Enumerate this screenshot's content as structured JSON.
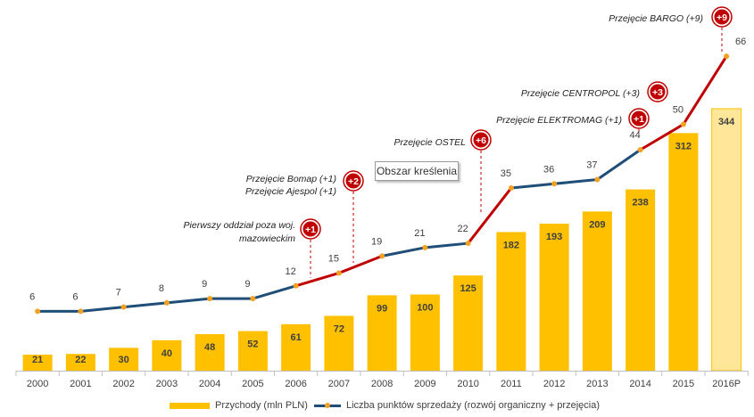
{
  "chart_data": {
    "type": "bar+line",
    "categories": [
      "2000",
      "2001",
      "2002",
      "2003",
      "2004",
      "2005",
      "2006",
      "2007",
      "2008",
      "2009",
      "2010",
      "2011",
      "2012",
      "2013",
      "2014",
      "2015",
      "2016P"
    ],
    "series": [
      {
        "name": "Przychody (mln PLN)",
        "type": "bar",
        "values": [
          21,
          22,
          30,
          40,
          48,
          52,
          61,
          72,
          99,
          100,
          125,
          182,
          193,
          209,
          238,
          312,
          344
        ],
        "projected_index": 16
      },
      {
        "name": "Liczba punktów sprzedaży (rozwój organiczny + przejęcia)",
        "type": "line",
        "values": [
          6,
          6,
          7,
          8,
          9,
          9,
          12,
          15,
          19,
          21,
          22,
          35,
          36,
          37,
          44,
          50,
          66
        ],
        "acquisition_segments": [
          [
            6,
            7
          ],
          [
            7,
            8
          ],
          [
            10,
            11
          ],
          [
            14,
            15
          ],
          [
            15,
            16
          ]
        ]
      }
    ],
    "annotations": [
      {
        "badge": "+1",
        "label": "Pierwszy oddział poza woj. mazowieckim",
        "at": 6.5
      },
      {
        "badge": "+2",
        "label": "Przejęcie Bomap (+1) Przejęcie Ajespol (+1)",
        "at": 7.5
      },
      {
        "badge": "+6",
        "label": "Przejęcie OSTEL",
        "at": 10.5
      },
      {
        "badge": "+1",
        "label": "Przejęcie ELEKTROMAG (+1)",
        "at": 14.5
      },
      {
        "badge": "+3",
        "label": "Przejęcie CENTROPOL (+3)",
        "at": 15.5
      },
      {
        "badge": "+9",
        "label": "Przejęcie BARGO (+9)",
        "at": 16
      }
    ],
    "tooltip": "Obszar kreślenia",
    "legend": {
      "bar": "Przychody (mln PLN)",
      "line": "Liczba punktów sprzedaży (rozwój organiczny + przejęcia)"
    },
    "colors": {
      "bar": "#FFC000",
      "bar_projected": "#FFE699",
      "line": "#1F4E79",
      "acquisition_line": "#C00000",
      "marker": "#F4A020",
      "badge": "#C00000"
    }
  }
}
